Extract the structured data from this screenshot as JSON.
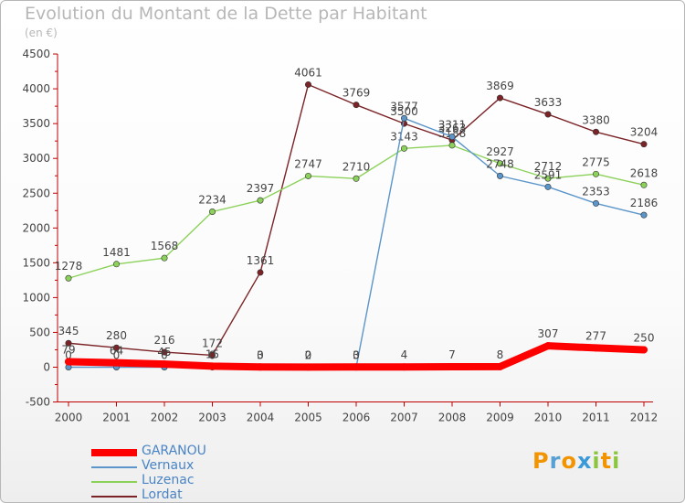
{
  "title": "Evolution du Montant de la Dette par Habitant",
  "subtitle": "(en €)",
  "logo": {
    "letters": [
      "P",
      "r",
      "o",
      "x",
      "i",
      "t",
      "i"
    ],
    "colors": [
      "#f29400",
      "#56a0d3",
      "#f29400",
      "#3a9ad9",
      "#8cc63f",
      "#f29400",
      "#8cc63f"
    ]
  },
  "chart_data": {
    "type": "line",
    "x": [
      "2000",
      "2001",
      "2002",
      "2003",
      "2004",
      "2005",
      "2006",
      "2007",
      "2008",
      "2009",
      "2010",
      "2011",
      "2012"
    ],
    "ylim": [
      -500,
      4500
    ],
    "yticks": [
      "-500",
      "0",
      "500",
      "1000",
      "1500",
      "2000",
      "2500",
      "3000",
      "3500",
      "4000",
      "4500"
    ],
    "grid": false,
    "legend_position": "bottom-left",
    "series": [
      {
        "name": "Lordat",
        "color": "#7b2326",
        "values": [
          345,
          280,
          216,
          172,
          1361,
          4061,
          3769,
          3500,
          3263,
          3869,
          3633,
          3380,
          3204
        ],
        "labels": [
          "345",
          "280",
          "216",
          "172",
          "1361",
          "4061",
          "3769",
          "3500",
          "3263",
          "3869",
          "3633",
          "3380",
          "3204"
        ]
      },
      {
        "name": "Luzenac",
        "color": "#8cd15a",
        "values": [
          1278,
          1481,
          1568,
          2234,
          2397,
          2747,
          2710,
          3143,
          3188,
          2927,
          2712,
          2775,
          2618
        ],
        "labels": [
          "1278",
          "1481",
          "1568",
          "2234",
          "2397",
          "2747",
          "2710",
          "3143",
          "3188",
          "2927",
          "2712",
          "2775",
          "2618"
        ]
      },
      {
        "name": "Vernaux",
        "color": "#5b95c9",
        "values": [
          0,
          0,
          0,
          0,
          0,
          0,
          0,
          3577,
          3311,
          2748,
          2591,
          2353,
          2186
        ],
        "labels": [
          "0",
          "0",
          "0",
          "0",
          "0",
          "0",
          "0",
          "3577",
          "3311",
          "2748",
          "2591",
          "2353",
          "2186"
        ]
      },
      {
        "name": "GARANOU",
        "color": "#ff0000",
        "values": [
          79,
          64,
          45,
          15,
          3,
          2,
          3,
          4,
          7,
          8,
          307,
          277,
          250
        ],
        "labels": [
          "79",
          "64",
          "45",
          "15",
          "3",
          "2",
          "3",
          "4",
          "7",
          "8",
          "307",
          "277",
          "250"
        ]
      }
    ],
    "legend_order": [
      "GARANOU",
      "Vernaux",
      "Luzenac",
      "Lordat"
    ]
  }
}
